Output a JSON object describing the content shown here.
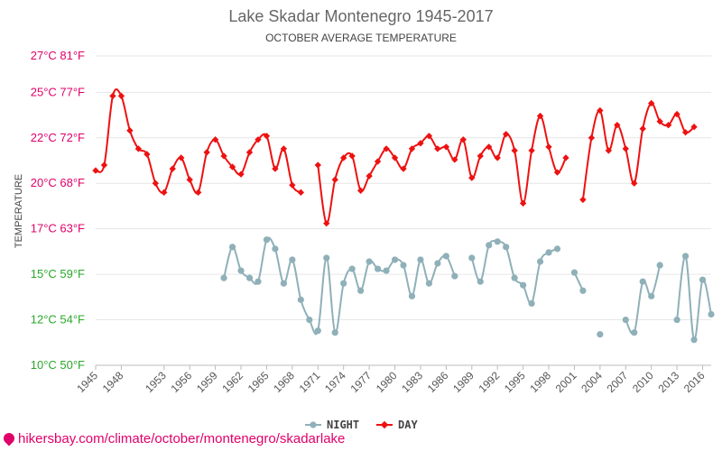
{
  "chart_data": {
    "type": "line",
    "title": "Lake Skadar Montenegro 1945-2017",
    "subtitle": "OCTOBER AVERAGE TEMPERATURE",
    "ylabel": "TEMPERATURE",
    "ylim": [
      10,
      27
    ],
    "xlim": [
      1945,
      2017
    ],
    "y_ticks": [
      {
        "value": 27,
        "label": "27°C 81°F",
        "color": "#e0006a"
      },
      {
        "value": 25,
        "label": "25°C 77°F",
        "color": "#e0006a"
      },
      {
        "value": 22.5,
        "label": "22°C 72°F",
        "color": "#e0006a"
      },
      {
        "value": 20,
        "label": "20°C 68°F",
        "color": "#e0006a"
      },
      {
        "value": 17.5,
        "label": "17°C 63°F",
        "color": "#e0006a"
      },
      {
        "value": 15,
        "label": "15°C 59°F",
        "color": "#2aa82a"
      },
      {
        "value": 12.5,
        "label": "12°C 54°F",
        "color": "#2aa82a"
      },
      {
        "value": 10,
        "label": "10°C 50°F",
        "color": "#2aa82a"
      }
    ],
    "x_ticks": [
      1945,
      1948,
      1953,
      1956,
      1959,
      1962,
      1965,
      1968,
      1971,
      1974,
      1977,
      1980,
      1983,
      1986,
      1989,
      1992,
      1995,
      1998,
      2001,
      2004,
      2007,
      2010,
      2013,
      2016
    ],
    "grid": true,
    "legend_position": "bottom",
    "series": [
      {
        "name": "NIGHT",
        "color": "#8fb0b8",
        "x": [
          1960,
          1961,
          1962,
          1963,
          1964,
          1965,
          1966,
          1967,
          1968,
          1969,
          1970,
          1971,
          1972,
          1973,
          1974,
          1975,
          1976,
          1977,
          1978,
          1979,
          1980,
          1981,
          1982,
          1983,
          1984,
          1985,
          1986,
          1987,
          1988,
          1989,
          1990,
          1991,
          1992,
          1993,
          1994,
          1995,
          1996,
          1997,
          1998,
          1999,
          2000,
          2001,
          2002,
          2003,
          2004,
          2005,
          2006,
          2007,
          2008,
          2009,
          2010,
          2011,
          2012,
          2013,
          2014,
          2015,
          2016,
          2017
        ],
        "values": [
          14.8,
          16.5,
          15.2,
          14.8,
          14.6,
          16.9,
          16.4,
          14.5,
          15.8,
          13.6,
          12.5,
          11.9,
          15.9,
          11.8,
          14.5,
          15.3,
          14.1,
          15.7,
          15.3,
          15.2,
          15.8,
          15.5,
          13.8,
          15.8,
          14.5,
          15.6,
          16.0,
          14.9,
          null,
          15.9,
          14.6,
          16.6,
          16.8,
          16.5,
          14.8,
          14.4,
          13.4,
          15.7,
          16.2,
          16.4,
          null,
          15.1,
          14.1,
          null,
          11.7,
          null,
          null,
          12.5,
          11.8,
          14.6,
          13.8,
          15.5,
          null,
          12.5,
          16.0,
          11.4,
          14.7,
          12.8
        ]
      },
      {
        "name": "DAY",
        "color": "#ee1111",
        "x": [
          1945,
          1946,
          1947,
          1948,
          1949,
          1950,
          1951,
          1952,
          1953,
          1954,
          1955,
          1956,
          1957,
          1958,
          1959,
          1960,
          1961,
          1962,
          1963,
          1964,
          1965,
          1966,
          1967,
          1968,
          1969,
          1970,
          1971,
          1972,
          1973,
          1974,
          1975,
          1976,
          1977,
          1978,
          1979,
          1980,
          1981,
          1982,
          1983,
          1984,
          1985,
          1986,
          1987,
          1988,
          1989,
          1990,
          1991,
          1992,
          1993,
          1994,
          1995,
          1996,
          1997,
          1998,
          1999,
          2000,
          2001,
          2002,
          2003,
          2004,
          2005,
          2006,
          2007,
          2008,
          2009,
          2010,
          2011,
          2012,
          2013,
          2014,
          2015,
          2016,
          2017
        ],
        "values": [
          20.7,
          21.0,
          24.8,
          24.8,
          22.9,
          21.9,
          21.6,
          20.0,
          19.5,
          20.8,
          21.4,
          20.2,
          19.5,
          21.7,
          22.4,
          21.5,
          20.9,
          20.5,
          21.7,
          22.4,
          22.6,
          20.8,
          21.9,
          19.9,
          19.5,
          null,
          21.0,
          17.8,
          20.2,
          21.4,
          21.5,
          19.6,
          20.4,
          21.2,
          21.9,
          21.4,
          20.8,
          21.9,
          22.2,
          22.6,
          21.9,
          22.0,
          21.3,
          22.4,
          20.3,
          21.5,
          22.0,
          21.4,
          22.7,
          21.8,
          18.9,
          21.8,
          23.7,
          22.0,
          20.6,
          21.4,
          null,
          19.1,
          22.5,
          24.0,
          21.8,
          23.2,
          21.9,
          20.0,
          23.0,
          24.4,
          23.4,
          23.2,
          23.8,
          22.8,
          23.1,
          null,
          null
        ]
      }
    ]
  },
  "footer": {
    "source_text": "hikersbay.com/climate/october/montenegro/skadarlake"
  }
}
